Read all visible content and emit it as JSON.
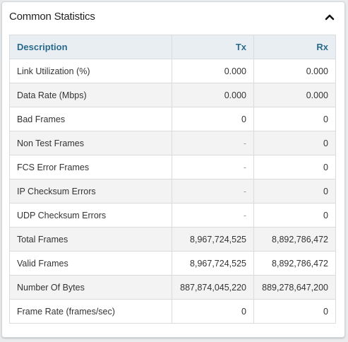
{
  "panel": {
    "title": "Common Statistics",
    "collapse_icon": "chevron-up-icon"
  },
  "table": {
    "headers": [
      "Description",
      "Tx",
      "Rx"
    ],
    "rows": [
      {
        "description": "Link Utilization (%)",
        "tx": "0.000",
        "rx": "0.000"
      },
      {
        "description": "Data Rate (Mbps)",
        "tx": "0.000",
        "rx": "0.000"
      },
      {
        "description": "Bad Frames",
        "tx": "0",
        "rx": "0"
      },
      {
        "description": "Non Test Frames",
        "tx": "-",
        "rx": "0"
      },
      {
        "description": "FCS Error Frames",
        "tx": "-",
        "rx": "0"
      },
      {
        "description": "IP Checksum Errors",
        "tx": "-",
        "rx": "0"
      },
      {
        "description": "UDP Checksum Errors",
        "tx": "-",
        "rx": "0"
      },
      {
        "description": "Total Frames",
        "tx": "8,967,724,525",
        "rx": "8,892,786,472"
      },
      {
        "description": "Valid Frames",
        "tx": "8,967,724,525",
        "rx": "8,892,786,472"
      },
      {
        "description": "Number Of Bytes",
        "tx": "887,874,045,220",
        "rx": "889,278,647,200"
      },
      {
        "description": "Frame Rate (frames/sec)",
        "tx": "0",
        "rx": "0"
      }
    ]
  }
}
